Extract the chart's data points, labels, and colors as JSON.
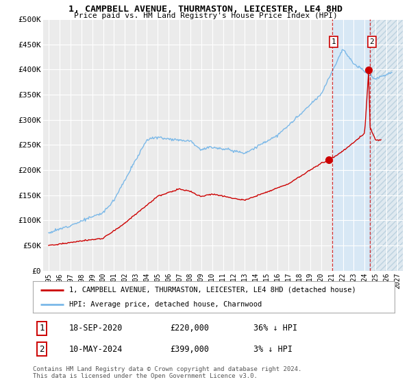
{
  "title": "1, CAMPBELL AVENUE, THURMASTON, LEICESTER, LE4 8HD",
  "subtitle": "Price paid vs. HM Land Registry's House Price Index (HPI)",
  "bg_color": "#ffffff",
  "plot_bg_color": "#ebebeb",
  "grid_color": "#ffffff",
  "hpi_color": "#7ab8e8",
  "price_color": "#cc0000",
  "shade_color": "#d8e8f5",
  "hatch_color": "#c8d8e8",
  "point1_x": 2020.72,
  "point1_y": 220000,
  "point2_x": 2024.36,
  "point2_y": 399000,
  "vline1_x": 2021.0,
  "vline2_x": 2024.5,
  "shade_start": 2021.0,
  "shade_end": 2024.5,
  "hatch_start": 2024.5,
  "hatch_end": 2027.5,
  "xmin": 1994.5,
  "xmax": 2027.5,
  "ymin": 0,
  "ymax": 500000,
  "yticks": [
    0,
    50000,
    100000,
    150000,
    200000,
    250000,
    300000,
    350000,
    400000,
    450000,
    500000
  ],
  "ytick_labels": [
    "£0",
    "£50K",
    "£100K",
    "£150K",
    "£200K",
    "£250K",
    "£300K",
    "£350K",
    "£400K",
    "£450K",
    "£500K"
  ],
  "xticks": [
    1995,
    1996,
    1997,
    1998,
    1999,
    2000,
    2001,
    2002,
    2003,
    2004,
    2005,
    2006,
    2007,
    2008,
    2009,
    2010,
    2011,
    2012,
    2013,
    2014,
    2015,
    2016,
    2017,
    2018,
    2019,
    2020,
    2021,
    2022,
    2023,
    2024,
    2025,
    2026,
    2027
  ],
  "legend_line1": "1, CAMPBELL AVENUE, THURMASTON, LEICESTER, LE4 8HD (detached house)",
  "legend_line2": "HPI: Average price, detached house, Charnwood",
  "ann1_num": "1",
  "ann1_date": "18-SEP-2020",
  "ann1_price": "£220,000",
  "ann1_hpi": "36% ↓ HPI",
  "ann2_num": "2",
  "ann2_date": "10-MAY-2024",
  "ann2_price": "£399,000",
  "ann2_hpi": "3% ↓ HPI",
  "footer": "Contains HM Land Registry data © Crown copyright and database right 2024.\nThis data is licensed under the Open Government Licence v3.0."
}
